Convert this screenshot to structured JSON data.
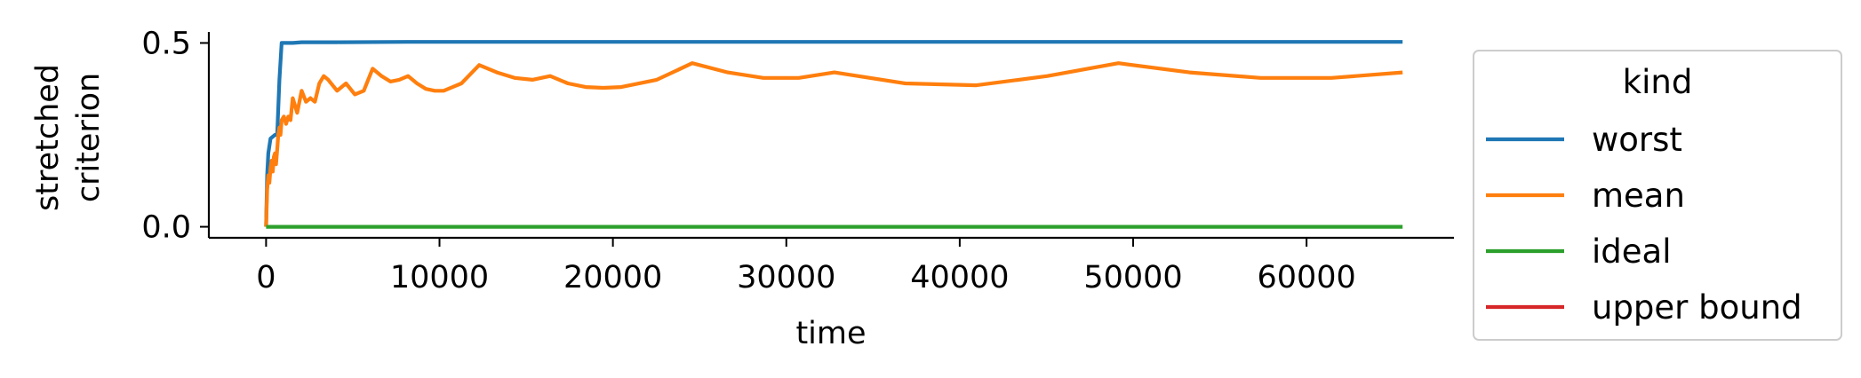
{
  "chart_data": {
    "type": "line",
    "xlabel": "time",
    "ylabel_lines": [
      "stretched",
      "criterion"
    ],
    "xlim": [
      -3300,
      68500
    ],
    "ylim": [
      -0.03,
      0.53
    ],
    "x_ticks": [
      0,
      10000,
      20000,
      30000,
      40000,
      50000,
      60000
    ],
    "y_ticks": [
      0.0,
      0.5
    ],
    "y_tick_labels": [
      "0.0",
      "0.5"
    ],
    "grid": false,
    "legend": {
      "title": "kind",
      "placement": "outside-right"
    },
    "series": [
      {
        "name": "worst",
        "color": "#1f77b4",
        "points": [
          [
            0,
            0.0
          ],
          [
            64,
            0.14
          ],
          [
            128,
            0.2
          ],
          [
            256,
            0.24
          ],
          [
            512,
            0.25
          ],
          [
            640,
            0.25
          ],
          [
            768,
            0.4
          ],
          [
            896,
            0.5
          ],
          [
            1024,
            0.5
          ],
          [
            1536,
            0.5
          ],
          [
            2048,
            0.502
          ],
          [
            4096,
            0.502
          ],
          [
            8192,
            0.503
          ],
          [
            16384,
            0.503
          ],
          [
            32768,
            0.503
          ],
          [
            65536,
            0.503
          ]
        ]
      },
      {
        "name": "mean",
        "color": "#ff7f0e",
        "points": [
          [
            0,
            0.0
          ],
          [
            64,
            0.1
          ],
          [
            128,
            0.14
          ],
          [
            192,
            0.12
          ],
          [
            256,
            0.16
          ],
          [
            320,
            0.18
          ],
          [
            384,
            0.15
          ],
          [
            448,
            0.19
          ],
          [
            512,
            0.2
          ],
          [
            576,
            0.17
          ],
          [
            640,
            0.21
          ],
          [
            704,
            0.25
          ],
          [
            768,
            0.27
          ],
          [
            832,
            0.25
          ],
          [
            896,
            0.29
          ],
          [
            1024,
            0.3
          ],
          [
            1152,
            0.28
          ],
          [
            1280,
            0.3
          ],
          [
            1408,
            0.29
          ],
          [
            1536,
            0.35
          ],
          [
            1664,
            0.33
          ],
          [
            1792,
            0.31
          ],
          [
            2048,
            0.37
          ],
          [
            2304,
            0.34
          ],
          [
            2560,
            0.35
          ],
          [
            2816,
            0.34
          ],
          [
            3072,
            0.39
          ],
          [
            3328,
            0.41
          ],
          [
            3584,
            0.4
          ],
          [
            4096,
            0.37
          ],
          [
            4608,
            0.39
          ],
          [
            5120,
            0.36
          ],
          [
            5632,
            0.37
          ],
          [
            6144,
            0.43
          ],
          [
            6656,
            0.41
          ],
          [
            7168,
            0.395
          ],
          [
            7680,
            0.4
          ],
          [
            8192,
            0.41
          ],
          [
            8704,
            0.39
          ],
          [
            9216,
            0.375
          ],
          [
            9728,
            0.37
          ],
          [
            10240,
            0.37
          ],
          [
            11264,
            0.39
          ],
          [
            12288,
            0.44
          ],
          [
            13312,
            0.42
          ],
          [
            14336,
            0.405
          ],
          [
            15360,
            0.4
          ],
          [
            16384,
            0.41
          ],
          [
            17408,
            0.39
          ],
          [
            18432,
            0.38
          ],
          [
            19456,
            0.378
          ],
          [
            20480,
            0.38
          ],
          [
            22528,
            0.4
          ],
          [
            24576,
            0.445
          ],
          [
            26624,
            0.42
          ],
          [
            28672,
            0.405
          ],
          [
            30720,
            0.405
          ],
          [
            32768,
            0.42
          ],
          [
            36864,
            0.39
          ],
          [
            40960,
            0.385
          ],
          [
            45056,
            0.41
          ],
          [
            49152,
            0.445
          ],
          [
            53248,
            0.42
          ],
          [
            57344,
            0.405
          ],
          [
            61440,
            0.405
          ],
          [
            65536,
            0.42
          ]
        ]
      },
      {
        "name": "ideal",
        "color": "#2ca02c",
        "points": [
          [
            0,
            0.0
          ],
          [
            65536,
            0.0
          ]
        ]
      },
      {
        "name": "upper bound",
        "color": "#d62728",
        "points": []
      }
    ]
  }
}
